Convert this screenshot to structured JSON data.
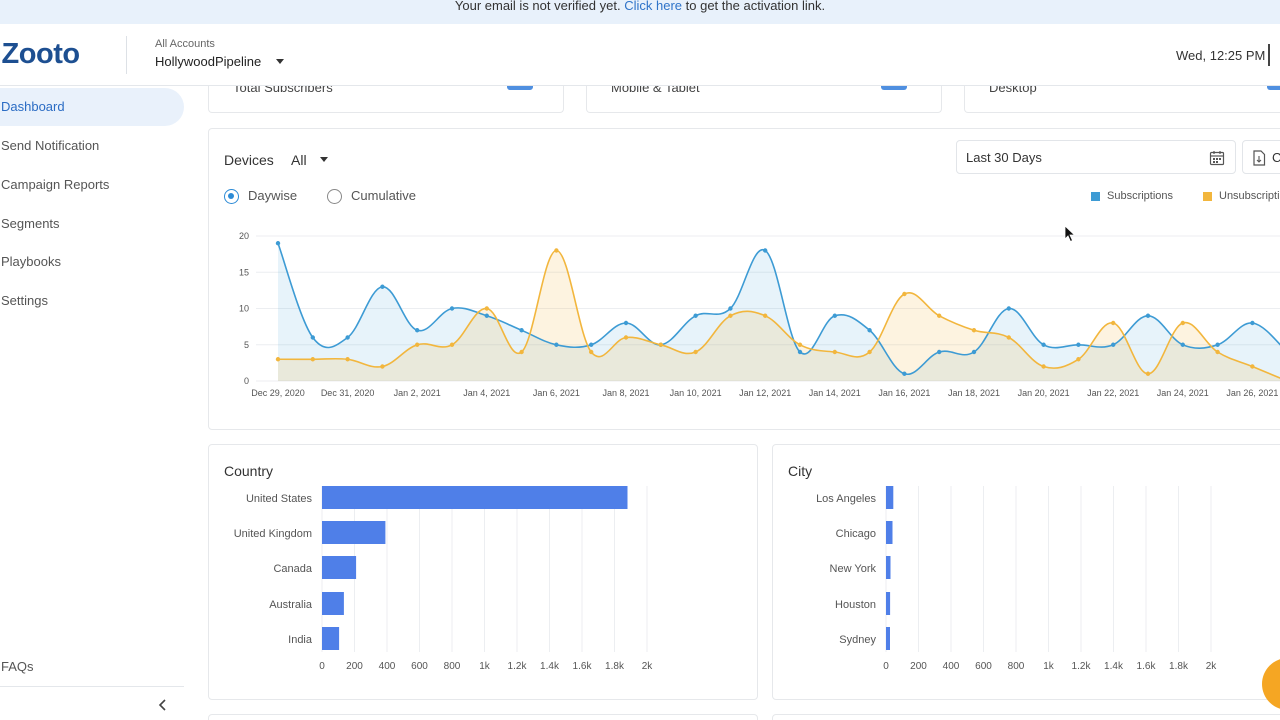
{
  "banner": {
    "text_before": "Your email is not verified yet.",
    "link_text": "Click here",
    "text_after": "to get the activation link."
  },
  "header": {
    "logo": "iZooto",
    "account_label": "All Accounts",
    "account_name": "HollywoodPipeline",
    "datetime": "Wed, 12:25 PM"
  },
  "sidebar": {
    "items": [
      {
        "label": "Dashboard",
        "active": true
      },
      {
        "label": "Send Notification",
        "active": false
      },
      {
        "label": "Campaign Reports",
        "active": false
      },
      {
        "label": "Segments",
        "active": false
      },
      {
        "label": "Playbooks",
        "active": false
      },
      {
        "label": "Settings",
        "active": false
      }
    ],
    "faqs": "FAQs",
    "collapse_icon": "chevron-left-icon"
  },
  "stat_cards": [
    {
      "label": "Total Subscribers"
    },
    {
      "label": "Mobile & Tablet"
    },
    {
      "label": "Desktop"
    }
  ],
  "filters": {
    "devices_label": "Devices",
    "devices_value": "All",
    "date_range": "Last 30 Days",
    "export_label": "C",
    "view_options": [
      "Daywise",
      "Cumulative"
    ],
    "view_selected": "Daywise"
  },
  "colors": {
    "subscriptions": "#3d9bd4",
    "unsubscriptions": "#f2b63d",
    "bar": "#4f7fe8",
    "accent": "#2b6cc4"
  },
  "chart_data": [
    {
      "type": "area",
      "series": [
        {
          "name": "Subscriptions",
          "values": [
            19,
            6,
            6,
            13,
            7,
            10,
            9,
            7,
            5,
            5,
            8,
            5,
            9,
            10,
            18,
            4,
            9,
            7,
            1,
            4,
            4,
            10,
            5,
            5,
            5,
            9,
            5,
            5,
            8,
            4
          ]
        },
        {
          "name": "Unsubscriptions",
          "values": [
            3,
            3,
            3,
            2,
            5,
            5,
            10,
            4,
            18,
            4,
            6,
            5,
            4,
            9,
            9,
            5,
            4,
            4,
            12,
            9,
            7,
            6,
            2,
            3,
            8,
            1,
            8,
            4,
            2,
            0
          ]
        }
      ],
      "x_tick_labels": [
        "Dec 29, 2020",
        "Dec 31, 2020",
        "Jan 2, 2021",
        "Jan 4, 2021",
        "Jan 6, 2021",
        "Jan 8, 2021",
        "Jan 10, 2021",
        "Jan 12, 2021",
        "Jan 14, 2021",
        "Jan 16, 2021",
        "Jan 18, 2021",
        "Jan 20, 2021",
        "Jan 22, 2021",
        "Jan 24, 2021",
        "Jan 26, 2021"
      ],
      "y_ticks": [
        0,
        5,
        10,
        15,
        20
      ],
      "ylim": [
        0,
        20
      ],
      "grid": true,
      "legend": "top-right"
    },
    {
      "type": "bar",
      "title": "Country",
      "categories": [
        "United States",
        "United Kingdom",
        "Canada",
        "Australia",
        "India"
      ],
      "values": [
        1880,
        390,
        210,
        135,
        105
      ],
      "x_ticks": [
        "0",
        "200",
        "400",
        "600",
        "800",
        "1k",
        "1.2k",
        "1.4k",
        "1.6k",
        "1.8k",
        "2k"
      ],
      "xlim": [
        0,
        2000
      ],
      "grid": true
    },
    {
      "type": "bar",
      "title": "City",
      "categories": [
        "Los Angeles",
        "Chicago",
        "New York",
        "Houston",
        "Sydney"
      ],
      "values": [
        45,
        40,
        28,
        25,
        22
      ],
      "x_ticks": [
        "0",
        "200",
        "400",
        "600",
        "800",
        "1k",
        "1.2k",
        "1.4k",
        "1.6k",
        "1.8k",
        "2k"
      ],
      "xlim": [
        0,
        2000
      ],
      "grid": true
    }
  ]
}
